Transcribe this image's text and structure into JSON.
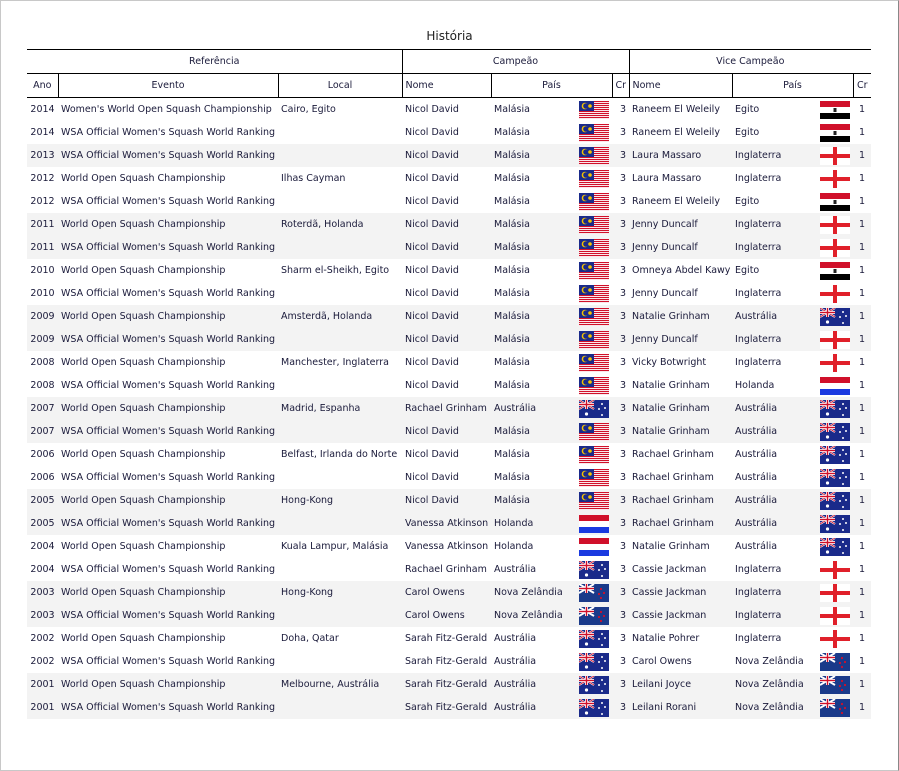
{
  "title": "História",
  "groups": {
    "ref": "Referência",
    "champ": "Campeão",
    "vice": "Vice Campeão"
  },
  "headers": {
    "ano": "Ano",
    "evento": "Evento",
    "local": "Local",
    "nome": "Nome",
    "pais": "País",
    "cr": "Cr",
    "nome2": "Nome",
    "pais2": "País",
    "cr2": "Cr"
  },
  "rows": [
    [
      "2014",
      "Women's World Open Squash Championship",
      "Cairo, Egito",
      "Nicol David",
      "Malásia",
      "malaysia-flag",
      "3",
      "Raneem El Weleily",
      "Egito",
      "egypt-flag",
      "1"
    ],
    [
      "2014",
      "WSA Official Women's Squash World Ranking",
      "",
      "Nicol David",
      "Malásia",
      "malaysia-flag",
      "3",
      "Raneem El Weleily",
      "Egito",
      "egypt-flag",
      "1"
    ],
    [
      "2013",
      "WSA Official Women's Squash World Ranking",
      "",
      "Nicol David",
      "Malásia",
      "malaysia-flag",
      "3",
      "Laura Massaro",
      "Inglaterra",
      "england-flag",
      "1"
    ],
    [
      "2012",
      "World Open Squash Championship",
      "Ilhas Cayman",
      "Nicol David",
      "Malásia",
      "malaysia-flag",
      "3",
      "Laura Massaro",
      "Inglaterra",
      "england-flag",
      "1"
    ],
    [
      "2012",
      "WSA Official Women's Squash World Ranking",
      "",
      "Nicol David",
      "Malásia",
      "malaysia-flag",
      "3",
      "Raneem El Weleily",
      "Egito",
      "egypt-flag",
      "1"
    ],
    [
      "2011",
      "World Open Squash Championship",
      "Roterdã, Holanda",
      "Nicol David",
      "Malásia",
      "malaysia-flag",
      "3",
      "Jenny Duncalf",
      "Inglaterra",
      "england-flag",
      "1"
    ],
    [
      "2011",
      "WSA Official Women's Squash World Ranking",
      "",
      "Nicol David",
      "Malásia",
      "malaysia-flag",
      "3",
      "Jenny Duncalf",
      "Inglaterra",
      "england-flag",
      "1"
    ],
    [
      "2010",
      "World Open Squash Championship",
      "Sharm el-Sheikh, Egito",
      "Nicol David",
      "Malásia",
      "malaysia-flag",
      "3",
      "Omneya Abdel Kawy",
      "Egito",
      "egypt-flag",
      "1"
    ],
    [
      "2010",
      "WSA Official Women's Squash World Ranking",
      "",
      "Nicol David",
      "Malásia",
      "malaysia-flag",
      "3",
      "Jenny Duncalf",
      "Inglaterra",
      "england-flag",
      "1"
    ],
    [
      "2009",
      "World Open Squash Championship",
      "Amsterdã, Holanda",
      "Nicol David",
      "Malásia",
      "malaysia-flag",
      "3",
      "Natalie Grinham",
      "Austrália",
      "australia-flag",
      "1"
    ],
    [
      "2009",
      "WSA Official Women's Squash World Ranking",
      "",
      "Nicol David",
      "Malásia",
      "malaysia-flag",
      "3",
      "Jenny Duncalf",
      "Inglaterra",
      "england-flag",
      "1"
    ],
    [
      "2008",
      "World Open Squash Championship",
      "Manchester, Inglaterra",
      "Nicol David",
      "Malásia",
      "malaysia-flag",
      "3",
      "Vicky Botwright",
      "Inglaterra",
      "england-flag",
      "1"
    ],
    [
      "2008",
      "WSA Official Women's Squash World Ranking",
      "",
      "Nicol David",
      "Malásia",
      "malaysia-flag",
      "3",
      "Natalie Grinham",
      "Holanda",
      "netherlands-flag",
      "1"
    ],
    [
      "2007",
      "World Open Squash Championship",
      "Madrid, Espanha",
      "Rachael Grinham",
      "Austrália",
      "australia-flag",
      "3",
      "Natalie Grinham",
      "Austrália",
      "australia-flag",
      "1"
    ],
    [
      "2007",
      "WSA Official Women's Squash World Ranking",
      "",
      "Nicol David",
      "Malásia",
      "malaysia-flag",
      "3",
      "Natalie Grinham",
      "Austrália",
      "australia-flag",
      "1"
    ],
    [
      "2006",
      "World Open Squash Championship",
      "Belfast, Irlanda do Norte",
      "Nicol David",
      "Malásia",
      "malaysia-flag",
      "3",
      "Rachael Grinham",
      "Austrália",
      "australia-flag",
      "1"
    ],
    [
      "2006",
      "WSA Official Women's Squash World Ranking",
      "",
      "Nicol David",
      "Malásia",
      "malaysia-flag",
      "3",
      "Rachael Grinham",
      "Austrália",
      "australia-flag",
      "1"
    ],
    [
      "2005",
      "World Open Squash Championship",
      "Hong-Kong",
      "Nicol David",
      "Malásia",
      "malaysia-flag",
      "3",
      "Rachael Grinham",
      "Austrália",
      "australia-flag",
      "1"
    ],
    [
      "2005",
      "WSA Official Women's Squash World Ranking",
      "",
      "Vanessa Atkinson",
      "Holanda",
      "netherlands-flag",
      "3",
      "Rachael Grinham",
      "Austrália",
      "australia-flag",
      "1"
    ],
    [
      "2004",
      "World Open Squash Championship",
      "Kuala Lampur, Malásia",
      "Vanessa Atkinson",
      "Holanda",
      "netherlands-flag",
      "3",
      "Natalie Grinham",
      "Austrália",
      "australia-flag",
      "1"
    ],
    [
      "2004",
      "WSA Official Women's Squash World Ranking",
      "",
      "Rachael Grinham",
      "Austrália",
      "australia-flag",
      "3",
      "Cassie Jackman",
      "Inglaterra",
      "england-flag",
      "1"
    ],
    [
      "2003",
      "World Open Squash Championship",
      "Hong-Kong",
      "Carol Owens",
      "Nova Zelândia",
      "new-zealand-flag",
      "3",
      "Cassie Jackman",
      "Inglaterra",
      "england-flag",
      "1"
    ],
    [
      "2003",
      "WSA Official Women's Squash World Ranking",
      "",
      "Carol Owens",
      "Nova Zelândia",
      "new-zealand-flag",
      "3",
      "Cassie Jackman",
      "Inglaterra",
      "england-flag",
      "1"
    ],
    [
      "2002",
      "World Open Squash Championship",
      "Doha, Qatar",
      "Sarah Fitz-Gerald",
      "Austrália",
      "australia-flag",
      "3",
      "Natalie Pohrer",
      "Inglaterra",
      "england-flag",
      "1"
    ],
    [
      "2002",
      "WSA Official Women's Squash World Ranking",
      "",
      "Sarah Fitz-Gerald",
      "Austrália",
      "australia-flag",
      "3",
      "Carol Owens",
      "Nova Zelândia",
      "new-zealand-flag",
      "1"
    ],
    [
      "2001",
      "World Open Squash Championship",
      "Melbourne, Austrália",
      "Sarah Fitz-Gerald",
      "Austrália",
      "australia-flag",
      "3",
      "Leilani Joyce",
      "Nova Zelândia",
      "new-zealand-flag",
      "1"
    ],
    [
      "2001",
      "WSA Official Women's Squash World Ranking",
      "",
      "Sarah Fitz-Gerald",
      "Austrália",
      "australia-flag",
      "3",
      "Leilani Rorani",
      "Nova Zelândia",
      "new-zealand-flag",
      "1"
    ]
  ]
}
